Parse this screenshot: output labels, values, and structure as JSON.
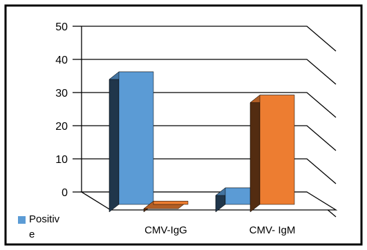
{
  "chart_data": {
    "type": "bar",
    "style": "3d-clustered-column",
    "categories": [
      "CMV-IgG",
      "CMV- IgM"
    ],
    "series": [
      {
        "name": "Positive",
        "color": "#5B9BD5",
        "values": [
          40,
          5
        ]
      },
      {
        "name": "",
        "color": "#ED7D31",
        "values": [
          1,
          33
        ]
      }
    ],
    "y_ticks": [
      "0",
      "10",
      "20",
      "30",
      "40",
      "50"
    ],
    "ylim": [
      0,
      50
    ],
    "grid": true,
    "legend": {
      "position": "bottom-left",
      "lines": [
        "Positiv",
        "e"
      ]
    },
    "title": "",
    "xlabel": "",
    "ylabel": ""
  }
}
